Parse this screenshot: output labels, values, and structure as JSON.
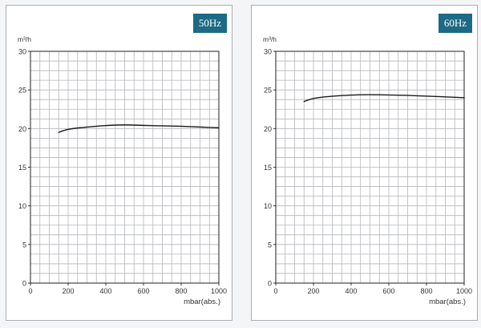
{
  "colors": {
    "badge": "#1c6a84",
    "grid": "#b4b6ba",
    "axis": "#333333",
    "curve": "#1a1a1a"
  },
  "chart_data": [
    {
      "type": "line",
      "badge": "50Hz",
      "ylabel": "m³/h",
      "xlabel": "mbar(abs.)",
      "xlim": [
        0,
        1000
      ],
      "ylim": [
        0,
        30
      ],
      "x_ticks": [
        "0",
        "200",
        "400",
        "600",
        "800",
        "1000"
      ],
      "y_ticks": [
        "0",
        "5",
        "10",
        "15",
        "20",
        "25",
        "30"
      ],
      "grid": true,
      "series": [
        {
          "x": [
            150,
            180,
            220,
            300,
            400,
            500,
            600,
            700,
            800,
            900,
            1000
          ],
          "y": [
            19.5,
            19.8,
            20.0,
            20.2,
            20.4,
            20.5,
            20.4,
            20.35,
            20.3,
            20.2,
            20.1
          ]
        }
      ]
    },
    {
      "type": "line",
      "badge": "60Hz",
      "ylabel": "m³/h",
      "xlabel": "mbar(abs.)",
      "xlim": [
        0,
        1000
      ],
      "ylim": [
        0,
        30
      ],
      "x_ticks": [
        "0",
        "200",
        "400",
        "600",
        "800",
        "1000"
      ],
      "y_ticks": [
        "0",
        "5",
        "10",
        "15",
        "20",
        "25",
        "30"
      ],
      "grid": true,
      "series": [
        {
          "x": [
            150,
            180,
            220,
            300,
            400,
            500,
            600,
            700,
            800,
            900,
            1000
          ],
          "y": [
            23.5,
            23.8,
            24.0,
            24.2,
            24.35,
            24.4,
            24.35,
            24.3,
            24.2,
            24.1,
            24.0
          ]
        }
      ]
    }
  ]
}
